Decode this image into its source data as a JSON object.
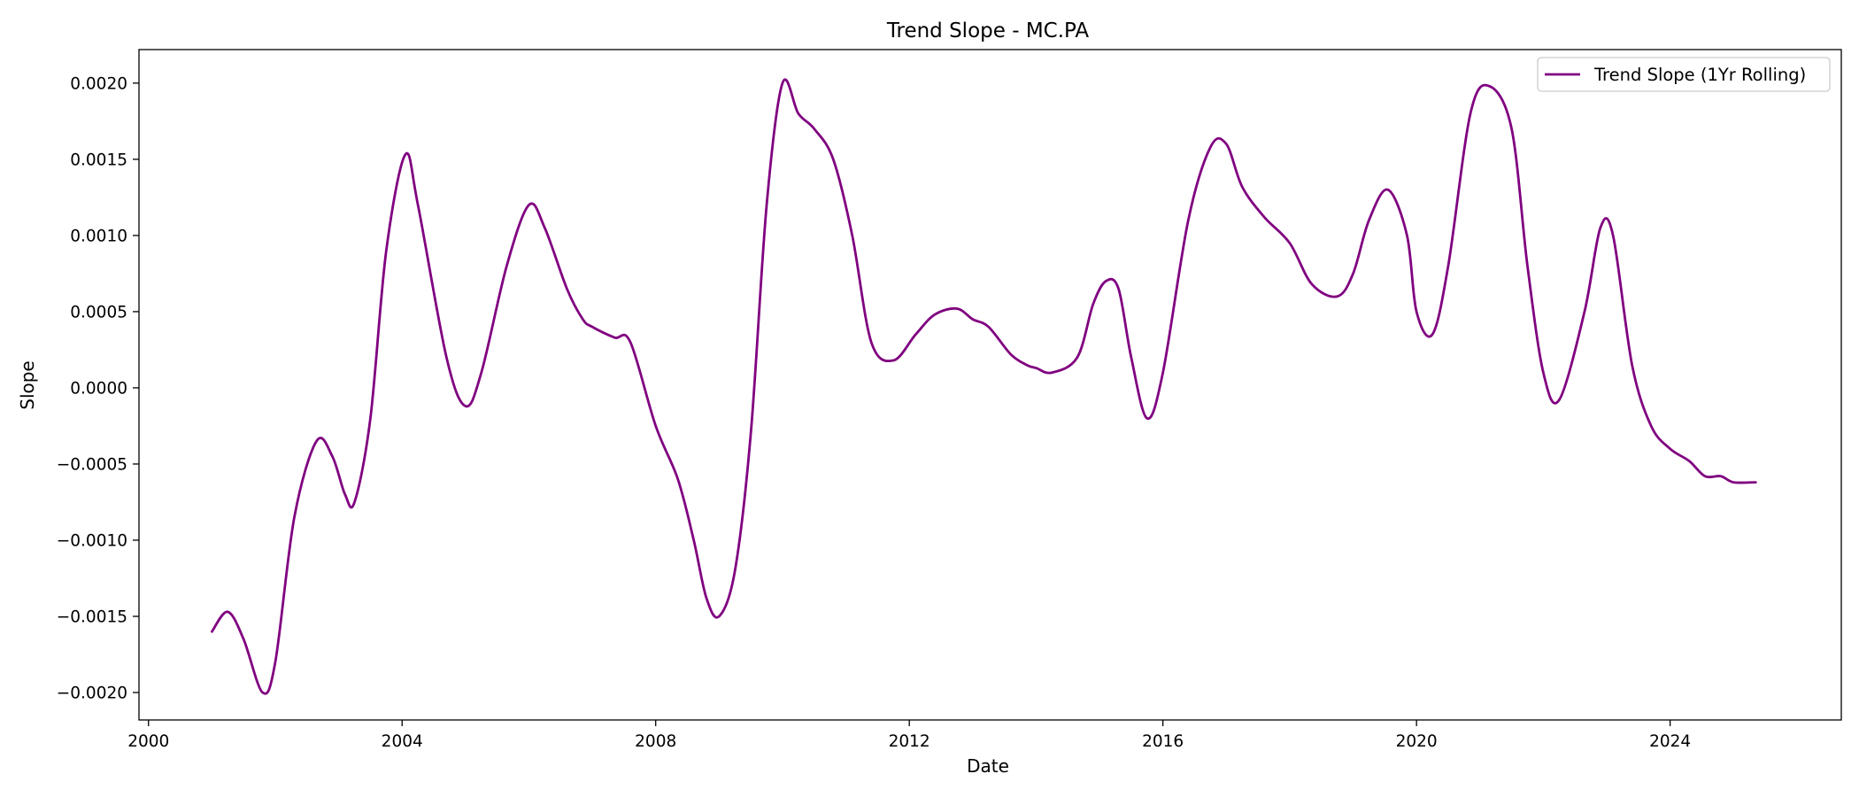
{
  "chart_data": {
    "type": "line",
    "title": "Trend Slope - MC.PA",
    "xlabel": "Date",
    "ylabel": "Slope",
    "xlim": [
      1999.85,
      2026.7
    ],
    "ylim": [
      -0.00218,
      0.00222
    ],
    "x_ticks": [
      2000,
      2004,
      2008,
      2012,
      2016,
      2020,
      2024
    ],
    "x_tick_labels": [
      "2000",
      "2004",
      "2008",
      "2012",
      "2016",
      "2020",
      "2024"
    ],
    "y_ticks": [
      -0.002,
      -0.0015,
      -0.001,
      -0.0005,
      0.0,
      0.0005,
      0.001,
      0.0015,
      0.002
    ],
    "y_tick_labels": [
      "−0.0020",
      "−0.0015",
      "−0.0010",
      "−0.0005",
      "0.0000",
      "0.0005",
      "0.0010",
      "0.0015",
      "0.0020"
    ],
    "grid": false,
    "legend_position": "top-right",
    "series": [
      {
        "name": "Trend Slope (1Yr Rolling)",
        "color": "#800080",
        "x": [
          2001.0,
          2001.25,
          2001.5,
          2001.8,
          2002.0,
          2002.3,
          2002.65,
          2002.9,
          2003.1,
          2003.25,
          2003.5,
          2003.75,
          2004.05,
          2004.25,
          2004.7,
          2005.0,
          2005.25,
          2005.65,
          2006.0,
          2006.25,
          2006.6,
          2006.85,
          2007.0,
          2007.35,
          2007.6,
          2008.0,
          2008.35,
          2008.6,
          2008.8,
          2009.0,
          2009.25,
          2009.5,
          2009.75,
          2010.0,
          2010.25,
          2010.5,
          2010.8,
          2011.1,
          2011.4,
          2011.75,
          2012.1,
          2012.4,
          2012.75,
          2013.0,
          2013.25,
          2013.6,
          2013.85,
          2014.0,
          2014.25,
          2014.65,
          2014.9,
          2015.1,
          2015.3,
          2015.5,
          2015.75,
          2016.0,
          2016.4,
          2016.75,
          2017.0,
          2017.25,
          2017.6,
          2018.0,
          2018.35,
          2018.75,
          2019.0,
          2019.25,
          2019.55,
          2019.85,
          2020.0,
          2020.25,
          2020.5,
          2020.85,
          2021.15,
          2021.5,
          2021.75,
          2022.0,
          2022.25,
          2022.65,
          2022.9,
          2023.1,
          2023.4,
          2023.7,
          2024.0,
          2024.3,
          2024.55,
          2024.8,
          2025.0,
          2025.35
        ],
        "y": [
          -0.0016,
          -0.00147,
          -0.00165,
          -0.002,
          -0.0018,
          -0.00085,
          -0.00035,
          -0.00045,
          -0.0007,
          -0.00075,
          -0.0002,
          0.0009,
          0.00153,
          0.0012,
          0.0002,
          -0.00012,
          0.0001,
          0.0008,
          0.0012,
          0.00105,
          0.00065,
          0.00045,
          0.0004,
          0.00033,
          0.0003,
          -0.00025,
          -0.0006,
          -0.001,
          -0.00138,
          -0.0015,
          -0.0012,
          -0.0003,
          0.0012,
          0.002,
          0.0018,
          0.0017,
          0.0015,
          0.001,
          0.0003,
          0.00018,
          0.00035,
          0.00048,
          0.00052,
          0.00045,
          0.0004,
          0.00022,
          0.00015,
          0.00013,
          0.0001,
          0.0002,
          0.00055,
          0.0007,
          0.00065,
          0.0002,
          -0.0002,
          0.0001,
          0.0011,
          0.00158,
          0.0016,
          0.00132,
          0.00112,
          0.00095,
          0.00068,
          0.0006,
          0.00075,
          0.0011,
          0.0013,
          0.001,
          0.0005,
          0.00035,
          0.0008,
          0.0018,
          0.00198,
          0.0017,
          0.0008,
          0.0001,
          -8e-05,
          0.0005,
          0.00105,
          0.001,
          0.00015,
          -0.00025,
          -0.0004,
          -0.00048,
          -0.00058,
          -0.00058,
          -0.00062,
          -0.00062
        ]
      }
    ]
  }
}
